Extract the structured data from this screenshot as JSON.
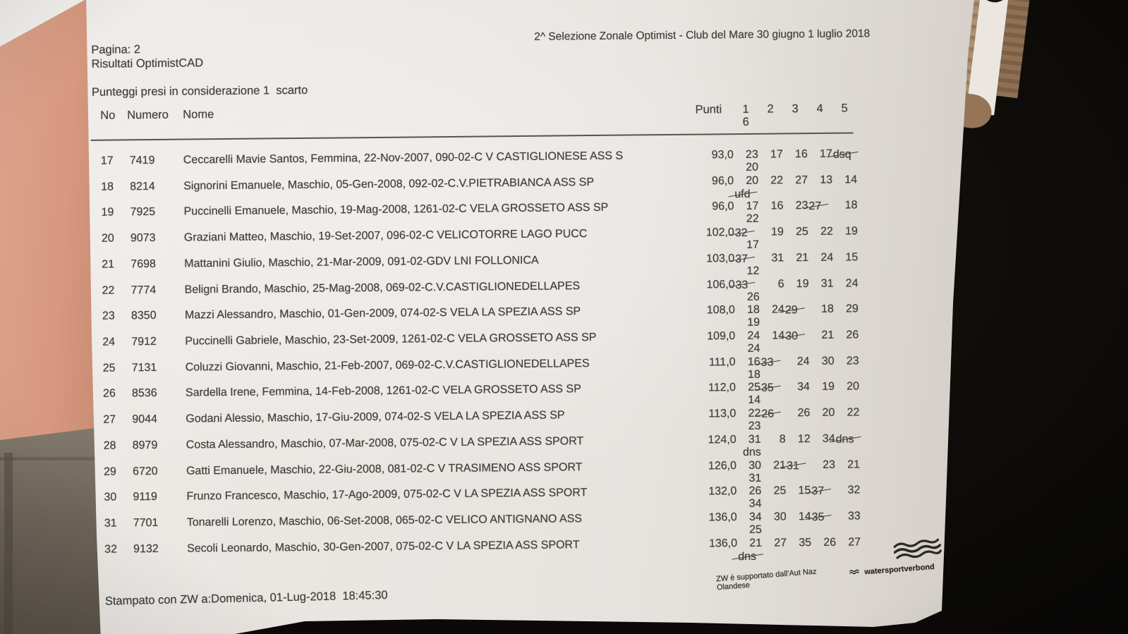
{
  "colors": {
    "wall": "#d6987f",
    "wall_lower": "#6e655a",
    "paper": "#e9e6e2",
    "ink": "#44413d",
    "background": "#0b0a08"
  },
  "header": {
    "page_label": "Pagina: 2",
    "app_title": "Risultati OptimistCAD",
    "event_title": "2^ Selezione Zonale Optimist - Club del Mare 30 giugno 1 luglio 2018",
    "scoring_note": "Punteggi presi in considerazione 1  scarto"
  },
  "table": {
    "columns": {
      "no": "No",
      "numero": "Numero",
      "nome": "Nome",
      "punti": "Punti",
      "races_line1": [
        "1",
        "2",
        "3",
        "4",
        "5"
      ],
      "races_line2": [
        "6"
      ]
    },
    "rows": [
      {
        "no": "17",
        "numero": "7419",
        "nome": "Ceccarelli Mavie Santos, Femmina, 22-Nov-2007, 090-02-C V CASTIGLIONESE ASS S",
        "punti": "93,0",
        "races": [
          {
            "v": "23"
          },
          {
            "v": "17"
          },
          {
            "v": "16"
          },
          {
            "v": "17"
          },
          {
            "v": "dsq",
            "struck": true
          }
        ],
        "race6": {
          "v": "20"
        }
      },
      {
        "no": "18",
        "numero": "8214",
        "nome": "Signorini Emanuele, Maschio, 05-Gen-2008, 092-02-C.V.PIETRABIANCA ASS SP",
        "punti": "96,0",
        "races": [
          {
            "v": "20"
          },
          {
            "v": "22"
          },
          {
            "v": "27"
          },
          {
            "v": "13"
          },
          {
            "v": "14"
          }
        ],
        "race6": {
          "v": "ufd",
          "struck": true
        }
      },
      {
        "no": "19",
        "numero": "7925",
        "nome": "Puccinelli Emanuele, Maschio, 19-Mag-2008, 1261-02-C VELA GROSSETO ASS SP",
        "punti": "96,0",
        "races": [
          {
            "v": "17"
          },
          {
            "v": "16"
          },
          {
            "v": "23"
          },
          {
            "v": "27",
            "struck": true
          },
          {
            "v": "18"
          }
        ],
        "race6": {
          "v": "22"
        }
      },
      {
        "no": "20",
        "numero": "9073",
        "nome": "Graziani Matteo, Maschio, 19-Set-2007, 096-02-C VELICOTORRE LAGO PUCC",
        "punti": "102,0",
        "races": [
          {
            "v": "32",
            "struck": true
          },
          {
            "v": "19"
          },
          {
            "v": "25"
          },
          {
            "v": "22"
          },
          {
            "v": "19"
          }
        ],
        "race6": {
          "v": "17"
        }
      },
      {
        "no": "21",
        "numero": "7698",
        "nome": "Mattanini Giulio, Maschio, 21-Mar-2009, 091-02-GDV LNI FOLLONICA",
        "punti": "103,0",
        "races": [
          {
            "v": "37",
            "struck": true
          },
          {
            "v": "31"
          },
          {
            "v": "21"
          },
          {
            "v": "24"
          },
          {
            "v": "15"
          }
        ],
        "race6": {
          "v": "12"
        }
      },
      {
        "no": "22",
        "numero": "7774",
        "nome": "Beligni Brando, Maschio, 25-Mag-2008, 069-02-C.V.CASTIGLIONEDELLAPES",
        "punti": "106,0",
        "races": [
          {
            "v": "33",
            "struck": true
          },
          {
            "v": "6"
          },
          {
            "v": "19"
          },
          {
            "v": "31"
          },
          {
            "v": "24"
          }
        ],
        "race6": {
          "v": "26"
        }
      },
      {
        "no": "23",
        "numero": "8350",
        "nome": "Mazzi Alessandro, Maschio, 01-Gen-2009, 074-02-S VELA LA SPEZIA ASS SP",
        "punti": "108,0",
        "races": [
          {
            "v": "18"
          },
          {
            "v": "24"
          },
          {
            "v": "29",
            "struck": true
          },
          {
            "v": "18"
          },
          {
            "v": "29"
          }
        ],
        "race6": {
          "v": "19"
        }
      },
      {
        "no": "24",
        "numero": "7912",
        "nome": "Puccinelli Gabriele, Maschio, 23-Set-2009, 1261-02-C VELA GROSSETO ASS SP",
        "punti": "109,0",
        "races": [
          {
            "v": "24"
          },
          {
            "v": "14"
          },
          {
            "v": "30",
            "struck": true
          },
          {
            "v": "21"
          },
          {
            "v": "26"
          }
        ],
        "race6": {
          "v": "24"
        }
      },
      {
        "no": "25",
        "numero": "7131",
        "nome": "Coluzzi Giovanni, Maschio, 21-Feb-2007, 069-02-C.V.CASTIGLIONEDELLAPES",
        "punti": "111,0",
        "races": [
          {
            "v": "16"
          },
          {
            "v": "33",
            "struck": true
          },
          {
            "v": "24"
          },
          {
            "v": "30"
          },
          {
            "v": "23"
          }
        ],
        "race6": {
          "v": "18"
        }
      },
      {
        "no": "26",
        "numero": "8536",
        "nome": "Sardella Irene, Femmina, 14-Feb-2008, 1261-02-C VELA GROSSETO ASS SP",
        "punti": "112,0",
        "races": [
          {
            "v": "25"
          },
          {
            "v": "35",
            "struck": true
          },
          {
            "v": "34"
          },
          {
            "v": "19"
          },
          {
            "v": "20"
          }
        ],
        "race6": {
          "v": "14"
        }
      },
      {
        "no": "27",
        "numero": "9044",
        "nome": "Godani Alessio, Maschio, 17-Giu-2009, 074-02-S VELA LA SPEZIA ASS SP",
        "punti": "113,0",
        "races": [
          {
            "v": "22"
          },
          {
            "v": "26",
            "struck": true
          },
          {
            "v": "26"
          },
          {
            "v": "20"
          },
          {
            "v": "22"
          }
        ],
        "race6": {
          "v": "23"
        }
      },
      {
        "no": "28",
        "numero": "8979",
        "nome": "Costa Alessandro, Maschio, 07-Mar-2008, 075-02-C V LA SPEZIA ASS SPORT",
        "punti": "124,0",
        "races": [
          {
            "v": "31"
          },
          {
            "v": "8"
          },
          {
            "v": "12"
          },
          {
            "v": "34"
          },
          {
            "v": "dns",
            "struck": true
          }
        ],
        "race6": {
          "v": "dns"
        }
      },
      {
        "no": "29",
        "numero": "6720",
        "nome": "Gatti Emanuele, Maschio, 22-Giu-2008, 081-02-C V TRASIMENO ASS SPORT",
        "punti": "126,0",
        "races": [
          {
            "v": "30"
          },
          {
            "v": "21"
          },
          {
            "v": "31",
            "struck": true
          },
          {
            "v": "23"
          },
          {
            "v": "21"
          }
        ],
        "race6": {
          "v": "31"
        }
      },
      {
        "no": "30",
        "numero": "9119",
        "nome": "Frunzo Francesco, Maschio, 17-Ago-2009, 075-02-C V LA SPEZIA ASS SPORT",
        "punti": "132,0",
        "races": [
          {
            "v": "26"
          },
          {
            "v": "25"
          },
          {
            "v": "15"
          },
          {
            "v": "37",
            "struck": true
          },
          {
            "v": "32"
          }
        ],
        "race6": {
          "v": "34"
        }
      },
      {
        "no": "31",
        "numero": "7701",
        "nome": "Tonarelli Lorenzo, Maschio, 06-Set-2008, 065-02-C VELICO ANTIGNANO ASS",
        "punti": "136,0",
        "races": [
          {
            "v": "34"
          },
          {
            "v": "30"
          },
          {
            "v": "14"
          },
          {
            "v": "35",
            "struck": true
          },
          {
            "v": "33"
          }
        ],
        "race6": {
          "v": "25"
        }
      },
      {
        "no": "32",
        "numero": "9132",
        "nome": "Secoli Leonardo, Maschio, 30-Gen-2007, 075-02-C V LA SPEZIA ASS SPORT",
        "punti": "136,0",
        "races": [
          {
            "v": "21"
          },
          {
            "v": "27"
          },
          {
            "v": "35"
          },
          {
            "v": "26"
          },
          {
            "v": "27"
          }
        ],
        "race6": {
          "v": "dns",
          "struck": true
        }
      }
    ]
  },
  "footer": {
    "printed_note": "Stampato con ZW a:Domenica, 01-Lug-2018  18:45:30",
    "support_note": "ZW è supportato dall'Aut Naz Olandese",
    "brand": "watersportverbond"
  },
  "icons": {
    "brand_logo": "waves-icon",
    "brand_logo_small": "wave-icon"
  }
}
